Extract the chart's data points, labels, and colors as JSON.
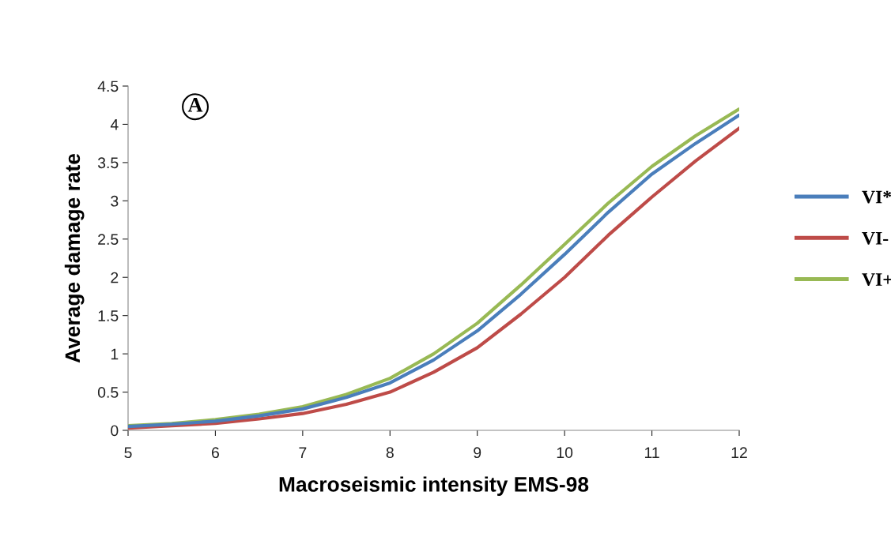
{
  "chart_data": {
    "type": "line",
    "xlabel": "Macroseismic intensity EMS-98",
    "ylabel": "Average damage rate",
    "annotations": [
      "A"
    ],
    "x": [
      5,
      5.5,
      6,
      6.5,
      7,
      7.5,
      8,
      8.5,
      9,
      9.5,
      10,
      10.5,
      11,
      11.5,
      12
    ],
    "series": [
      {
        "name": "VI*",
        "color": "#4a7ebb",
        "values": [
          0.05,
          0.08,
          0.12,
          0.19,
          0.28,
          0.43,
          0.62,
          0.92,
          1.3,
          1.78,
          2.3,
          2.85,
          3.35,
          3.75,
          4.12
        ]
      },
      {
        "name": "VI-",
        "color": "#be4b48",
        "values": [
          0.03,
          0.06,
          0.09,
          0.15,
          0.22,
          0.34,
          0.5,
          0.76,
          1.08,
          1.52,
          2.0,
          2.55,
          3.05,
          3.52,
          3.95
        ]
      },
      {
        "name": "VI+",
        "color": "#98b954",
        "values": [
          0.06,
          0.09,
          0.14,
          0.21,
          0.31,
          0.47,
          0.68,
          1.0,
          1.4,
          1.9,
          2.43,
          2.97,
          3.45,
          3.85,
          4.2
        ]
      }
    ],
    "xlim": [
      5,
      12
    ],
    "xticks": [
      5,
      6,
      7,
      8,
      9,
      10,
      11,
      12
    ],
    "ylim": [
      0,
      4.5
    ],
    "yticks": [
      0,
      0.5,
      1,
      1.5,
      2,
      2.5,
      3,
      3.5,
      4,
      4.5
    ],
    "grid": false,
    "legend": "right",
    "marker": "none",
    "line_style": "solid"
  }
}
